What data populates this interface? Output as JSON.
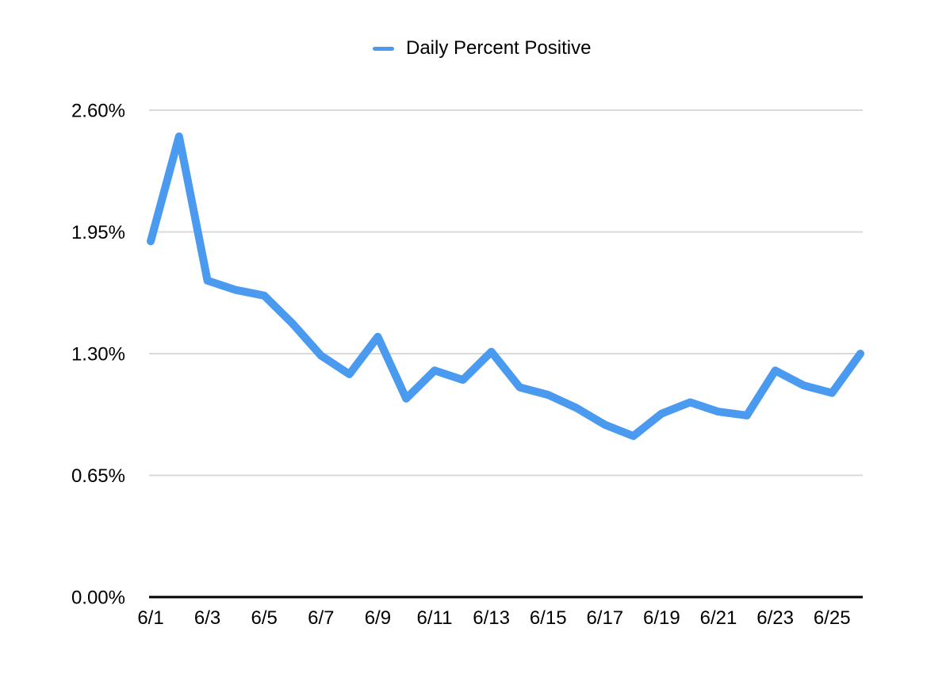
{
  "legend": {
    "label": "Daily Percent Positive"
  },
  "colors": {
    "series": "#4a9af0",
    "gridline": "#d9d9d9",
    "axis": "#000000",
    "label_text": "#000000",
    "background": "#ffffff"
  },
  "chart_data": {
    "type": "line",
    "title": "",
    "legend_position": "top",
    "grid": "horizontal",
    "series_name": "Daily Percent Positive",
    "categories": [
      "6/1",
      "6/2",
      "6/3",
      "6/4",
      "6/5",
      "6/6",
      "6/7",
      "6/8",
      "6/9",
      "6/10",
      "6/11",
      "6/12",
      "6/13",
      "6/14",
      "6/15",
      "6/16",
      "6/17",
      "6/18",
      "6/19",
      "6/20",
      "6/21",
      "6/22",
      "6/23",
      "6/24",
      "6/25",
      "6/26"
    ],
    "values": [
      1.9,
      2.46,
      1.69,
      1.64,
      1.61,
      1.46,
      1.29,
      1.19,
      1.39,
      1.06,
      1.21,
      1.16,
      1.31,
      1.12,
      1.08,
      1.01,
      0.92,
      0.86,
      0.98,
      1.04,
      0.99,
      0.97,
      1.21,
      1.13,
      1.09,
      1.3
    ],
    "unit": "%",
    "ylim": [
      0,
      2.6
    ],
    "y_tick_values": [
      0,
      0.65,
      1.3,
      1.95,
      2.6
    ],
    "y_tick_labels": [
      "0.00%",
      "0.65%",
      "1.30%",
      "1.95%",
      "2.60%"
    ],
    "x_tick_labels": [
      "6/1",
      "6/3",
      "6/5",
      "6/7",
      "6/9",
      "6/11",
      "6/13",
      "6/15",
      "6/17",
      "6/19",
      "6/21",
      "6/23",
      "6/25"
    ]
  }
}
